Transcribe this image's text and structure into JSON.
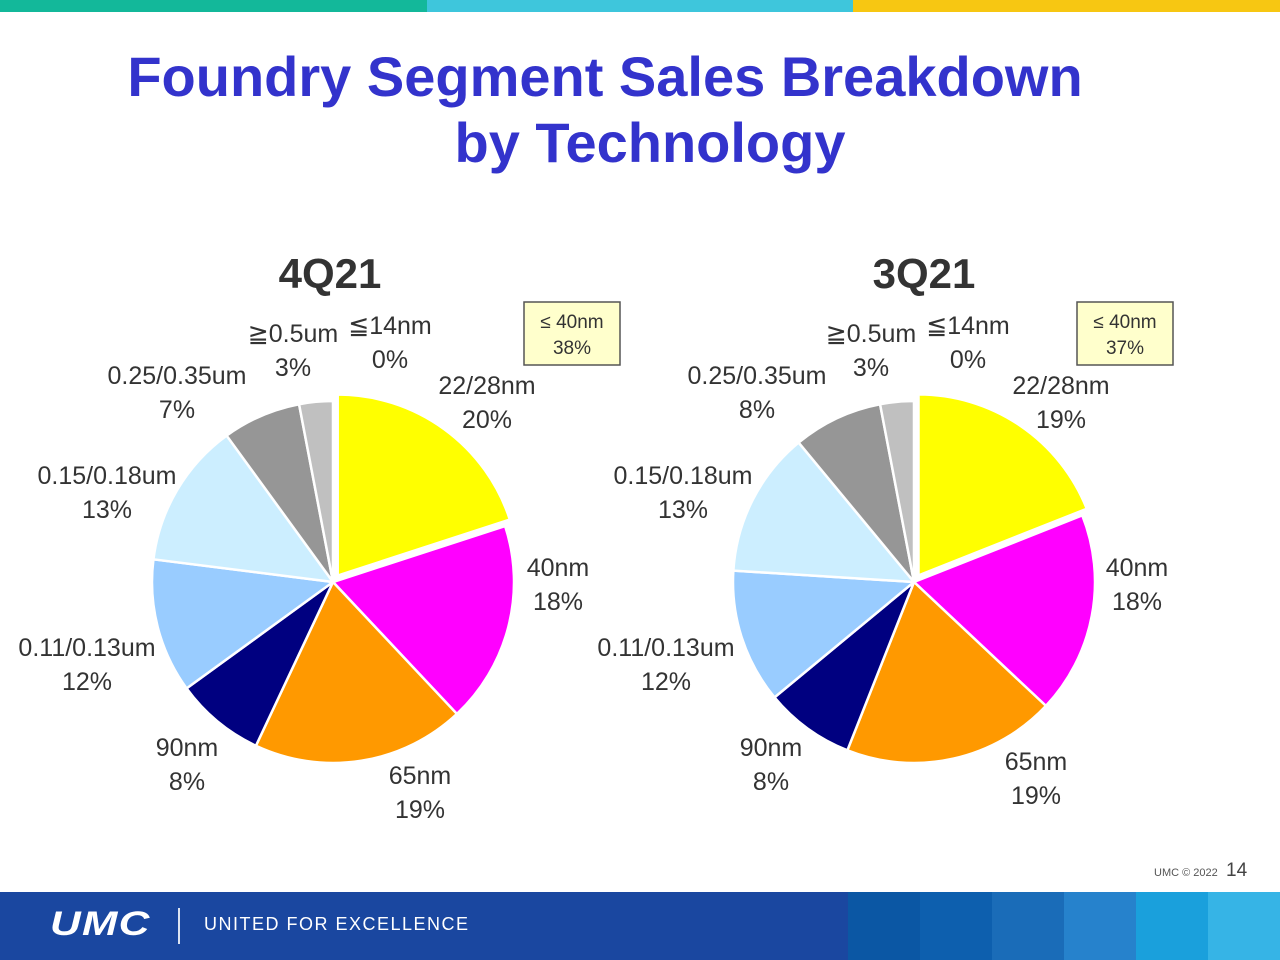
{
  "title_line1": "Foundry Segment Sales Breakdown",
  "title_line2": "by Technology",
  "top_bar_colors": [
    "#13b89a",
    "#3ec6dc",
    "#f7c712"
  ],
  "chart_data": [
    {
      "type": "pie",
      "title": "4Q21",
      "callout": "≤ 40nm\n38%",
      "slices": [
        {
          "label": "22/28nm",
          "value": 20,
          "color": "#ffff00"
        },
        {
          "label": "40nm",
          "value": 18,
          "color": "#ff00ff"
        },
        {
          "label": "65nm",
          "value": 19,
          "color": "#ff9900"
        },
        {
          "label": "90nm",
          "value": 8,
          "color": "#000080"
        },
        {
          "label": "0.11/0.13um",
          "value": 12,
          "color": "#99ccff"
        },
        {
          "label": "0.15/0.18um",
          "value": 13,
          "color": "#cceeff"
        },
        {
          "label": "0.25/0.35um",
          "value": 7,
          "color": "#969696"
        },
        {
          "label": "≧0.5um",
          "value": 3,
          "color": "#c0c0c0"
        },
        {
          "label": "≦14nm",
          "value": 0,
          "color": "#ffffff"
        }
      ]
    },
    {
      "type": "pie",
      "title": "3Q21",
      "callout": "≤ 40nm\n37%",
      "slices": [
        {
          "label": "22/28nm",
          "value": 19,
          "color": "#ffff00"
        },
        {
          "label": "40nm",
          "value": 18,
          "color": "#ff00ff"
        },
        {
          "label": "65nm",
          "value": 19,
          "color": "#ff9900"
        },
        {
          "label": "90nm",
          "value": 8,
          "color": "#000080"
        },
        {
          "label": "0.11/0.13um",
          "value": 12,
          "color": "#99ccff"
        },
        {
          "label": "0.15/0.18um",
          "value": 13,
          "color": "#cceeff"
        },
        {
          "label": "0.25/0.35um",
          "value": 8,
          "color": "#969696"
        },
        {
          "label": "≧0.5um",
          "value": 3,
          "color": "#c0c0c0"
        },
        {
          "label": "≦14nm",
          "value": 0,
          "color": "#ffffff"
        }
      ]
    }
  ],
  "footer": {
    "logo": "UMC",
    "tagline": "UNITED FOR EXCELLENCE",
    "copyright": "UMC © 2022",
    "page_number": "14",
    "block_colors": [
      "#0b57a4",
      "#0d5fae",
      "#1a6cb8",
      "#2682cc",
      "#1aa0dc",
      "#36b4e6"
    ]
  }
}
